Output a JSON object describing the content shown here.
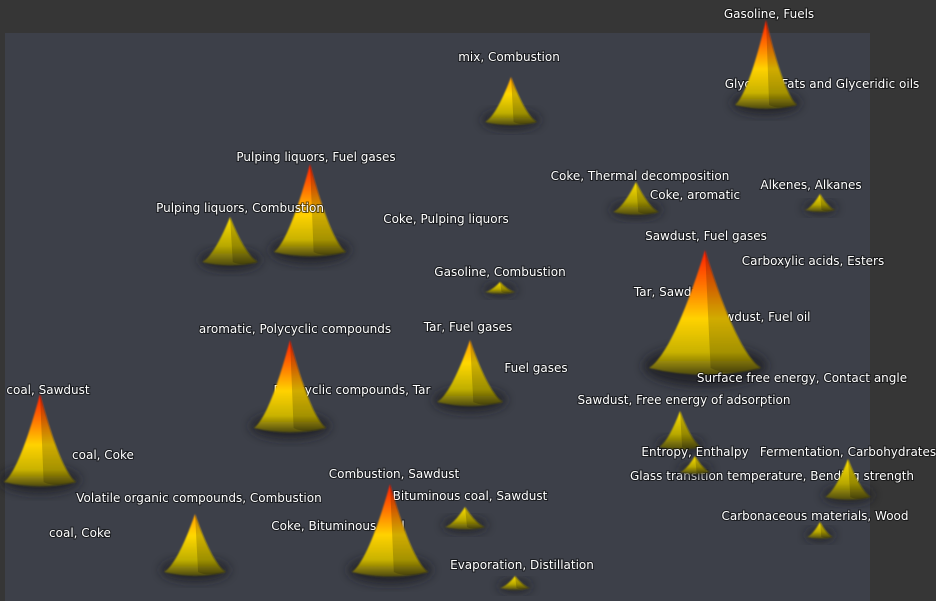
{
  "labels": [
    "Gasoline, Fuels",
    "Glycerol, Fats and Glyceridic oils",
    "mix, Combustion",
    "Pulping liquors, Fuel gases",
    "Pulping liquors, Combustion",
    "Coke, Pulping liquors",
    "Coke, Thermal decomposition",
    "Coke, aromatic",
    "Alkenes, Alkanes",
    "Sawdust, Fuel gases",
    "Carboxylic acids, Esters",
    "Gasoline, Combustion",
    "Tar, Sawdust",
    "Sawdust, Fuel oil",
    "aromatic, Polycyclic compounds",
    "Tar, Fuel gases",
    "Fuel gases",
    "Polycyclic compounds, Tar",
    "Surface free energy, Contact angle",
    "Sawdust, Free energy of adsorption",
    "coal, Sawdust",
    "coal, Coke",
    "Entropy, Enthalpy",
    "Fermentation, Carbohydrates",
    "Glass transition temperature, Bending strength",
    "Combustion, Sawdust",
    "Volatile organic compounds, Combustion",
    "Bituminous coal, Sawdust",
    "Carbonaceous materials, Wood",
    "coal, Coke",
    "Coke, Bituminous coal",
    "Evaporation, Distillation"
  ]
}
